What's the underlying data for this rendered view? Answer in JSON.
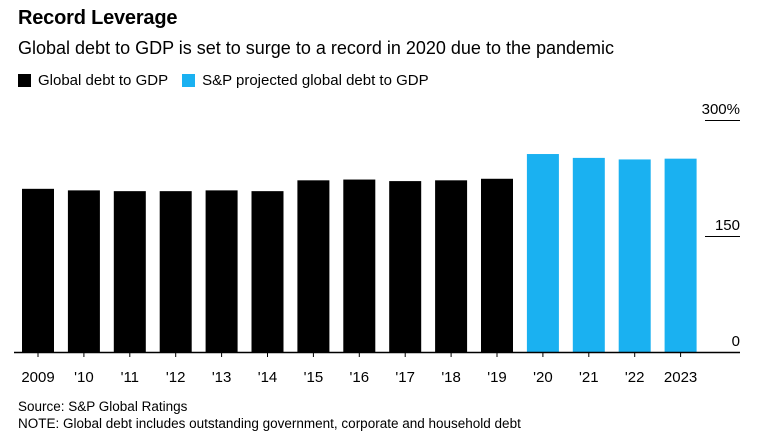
{
  "chart_data": {
    "type": "bar",
    "title": "Record Leverage",
    "subtitle": "Global debt to GDP is set to surge to a record in 2020 due to the pandemic",
    "categories": [
      "2009",
      "'10",
      "'11",
      "'12",
      "'13",
      "'14",
      "'15",
      "'16",
      "'17",
      "'18",
      "'19",
      "'20",
      "'21",
      "'22",
      "2023"
    ],
    "values": [
      211,
      209,
      208,
      208,
      209,
      208,
      222,
      223,
      221,
      222,
      224,
      256,
      251,
      249,
      250
    ],
    "projected": [
      false,
      false,
      false,
      false,
      false,
      false,
      false,
      false,
      false,
      false,
      false,
      true,
      true,
      true,
      true
    ],
    "series": [
      {
        "name": "Global debt to GDP",
        "color": "#000000"
      },
      {
        "name": "S&P projected global debt to GDP",
        "color": "#1ab1f1"
      }
    ],
    "ylim": [
      0,
      300
    ],
    "yticks": [
      {
        "value": 300,
        "label": "300%"
      },
      {
        "value": 150,
        "label": "150"
      },
      {
        "value": 0,
        "label": "0"
      }
    ],
    "xlabel": "",
    "ylabel": "",
    "y_axis_position": "right",
    "legend_position": "top-left"
  },
  "footer": {
    "source": "Source: S&P Global Ratings",
    "note": "NOTE: Global debt includes outstanding government, corporate and household debt"
  }
}
